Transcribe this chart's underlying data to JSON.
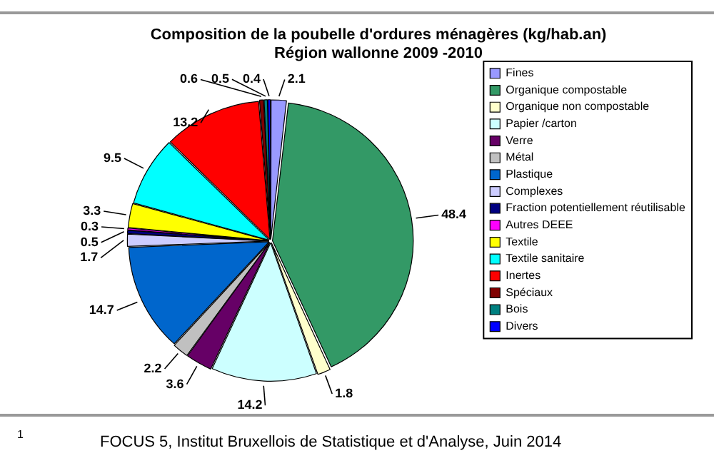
{
  "chart_data": {
    "type": "pie",
    "title": "Composition de la poubelle d'ordures ménagères (kg/hab.an)",
    "subtitle": "Région wallonne 2009 -2010",
    "categories": [
      "Fines",
      "Organique compostable",
      "Organique non compostable",
      "Papier /carton",
      "Verre",
      "Métal",
      "Plastique",
      "Complexes",
      "Fraction potentiellement réutilisable",
      "Autres DEEE",
      "Textile",
      "Textile sanitaire",
      "Inertes",
      "Spéciaux",
      "Bois",
      "Divers"
    ],
    "values": [
      2.1,
      48.4,
      1.8,
      14.2,
      3.6,
      2.2,
      14.7,
      1.7,
      0.5,
      0.3,
      3.3,
      9.5,
      13.2,
      0.6,
      0.5,
      0.4
    ],
    "colors": [
      "#9999ff",
      "#339966",
      "#ffffcc",
      "#ccffff",
      "#660066",
      "#c0c0c0",
      "#0066cc",
      "#ccccff",
      "#000080",
      "#ff00ff",
      "#ffff00",
      "#00ffff",
      "#ff0000",
      "#800000",
      "#008080",
      "#0000ff"
    ],
    "data_labels": true,
    "legend": "right",
    "annotations": [
      "1",
      "FOCUS 5, Institut Bruxellois de Statistique et d'Analyse, Juin 2014"
    ]
  }
}
